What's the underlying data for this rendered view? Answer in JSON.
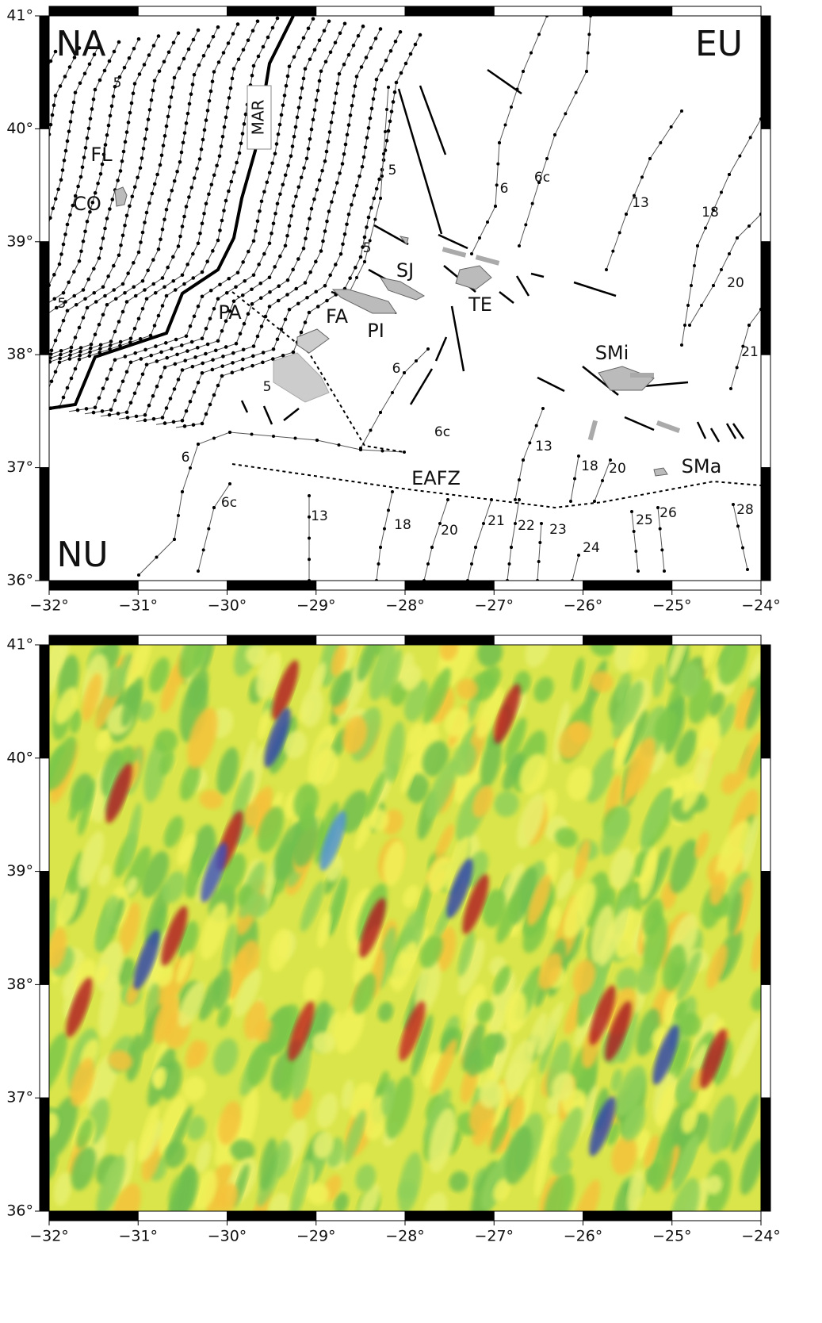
{
  "axes": {
    "xticks": [
      {
        "value": -32,
        "label": "−32°"
      },
      {
        "value": -31,
        "label": "−31°"
      },
      {
        "value": -30,
        "label": "−30°"
      },
      {
        "value": -29,
        "label": "−29°"
      },
      {
        "value": -28,
        "label": "−28°"
      },
      {
        "value": -27,
        "label": "−27°"
      },
      {
        "value": -26,
        "label": "−26°"
      },
      {
        "value": -25,
        "label": "−25°"
      },
      {
        "value": -24,
        "label": "−24°"
      }
    ],
    "yticks": [
      {
        "value": 41,
        "label": "41°"
      },
      {
        "value": 40,
        "label": "40°"
      },
      {
        "value": 39,
        "label": "39°"
      },
      {
        "value": 38,
        "label": "38°"
      },
      {
        "value": 37,
        "label": "37°"
      },
      {
        "value": 36,
        "label": "36°"
      }
    ]
  },
  "map_top": {
    "plates": [
      "NA",
      "EU",
      "NU"
    ],
    "features": [
      "MAR",
      "FL",
      "CO",
      "PA",
      "FA",
      "PI",
      "SJ",
      "TE",
      "SMi",
      "SMa",
      "EAFZ"
    ],
    "anomalies": [
      "5",
      "5",
      "5",
      "5",
      "5",
      "6",
      "6c",
      "13",
      "18",
      "20",
      "21",
      "6",
      "6c",
      "6",
      "6c",
      "13",
      "18",
      "20",
      "13",
      "18",
      "20",
      "21",
      "22",
      "23",
      "24",
      "25",
      "26",
      "28"
    ]
  }
}
